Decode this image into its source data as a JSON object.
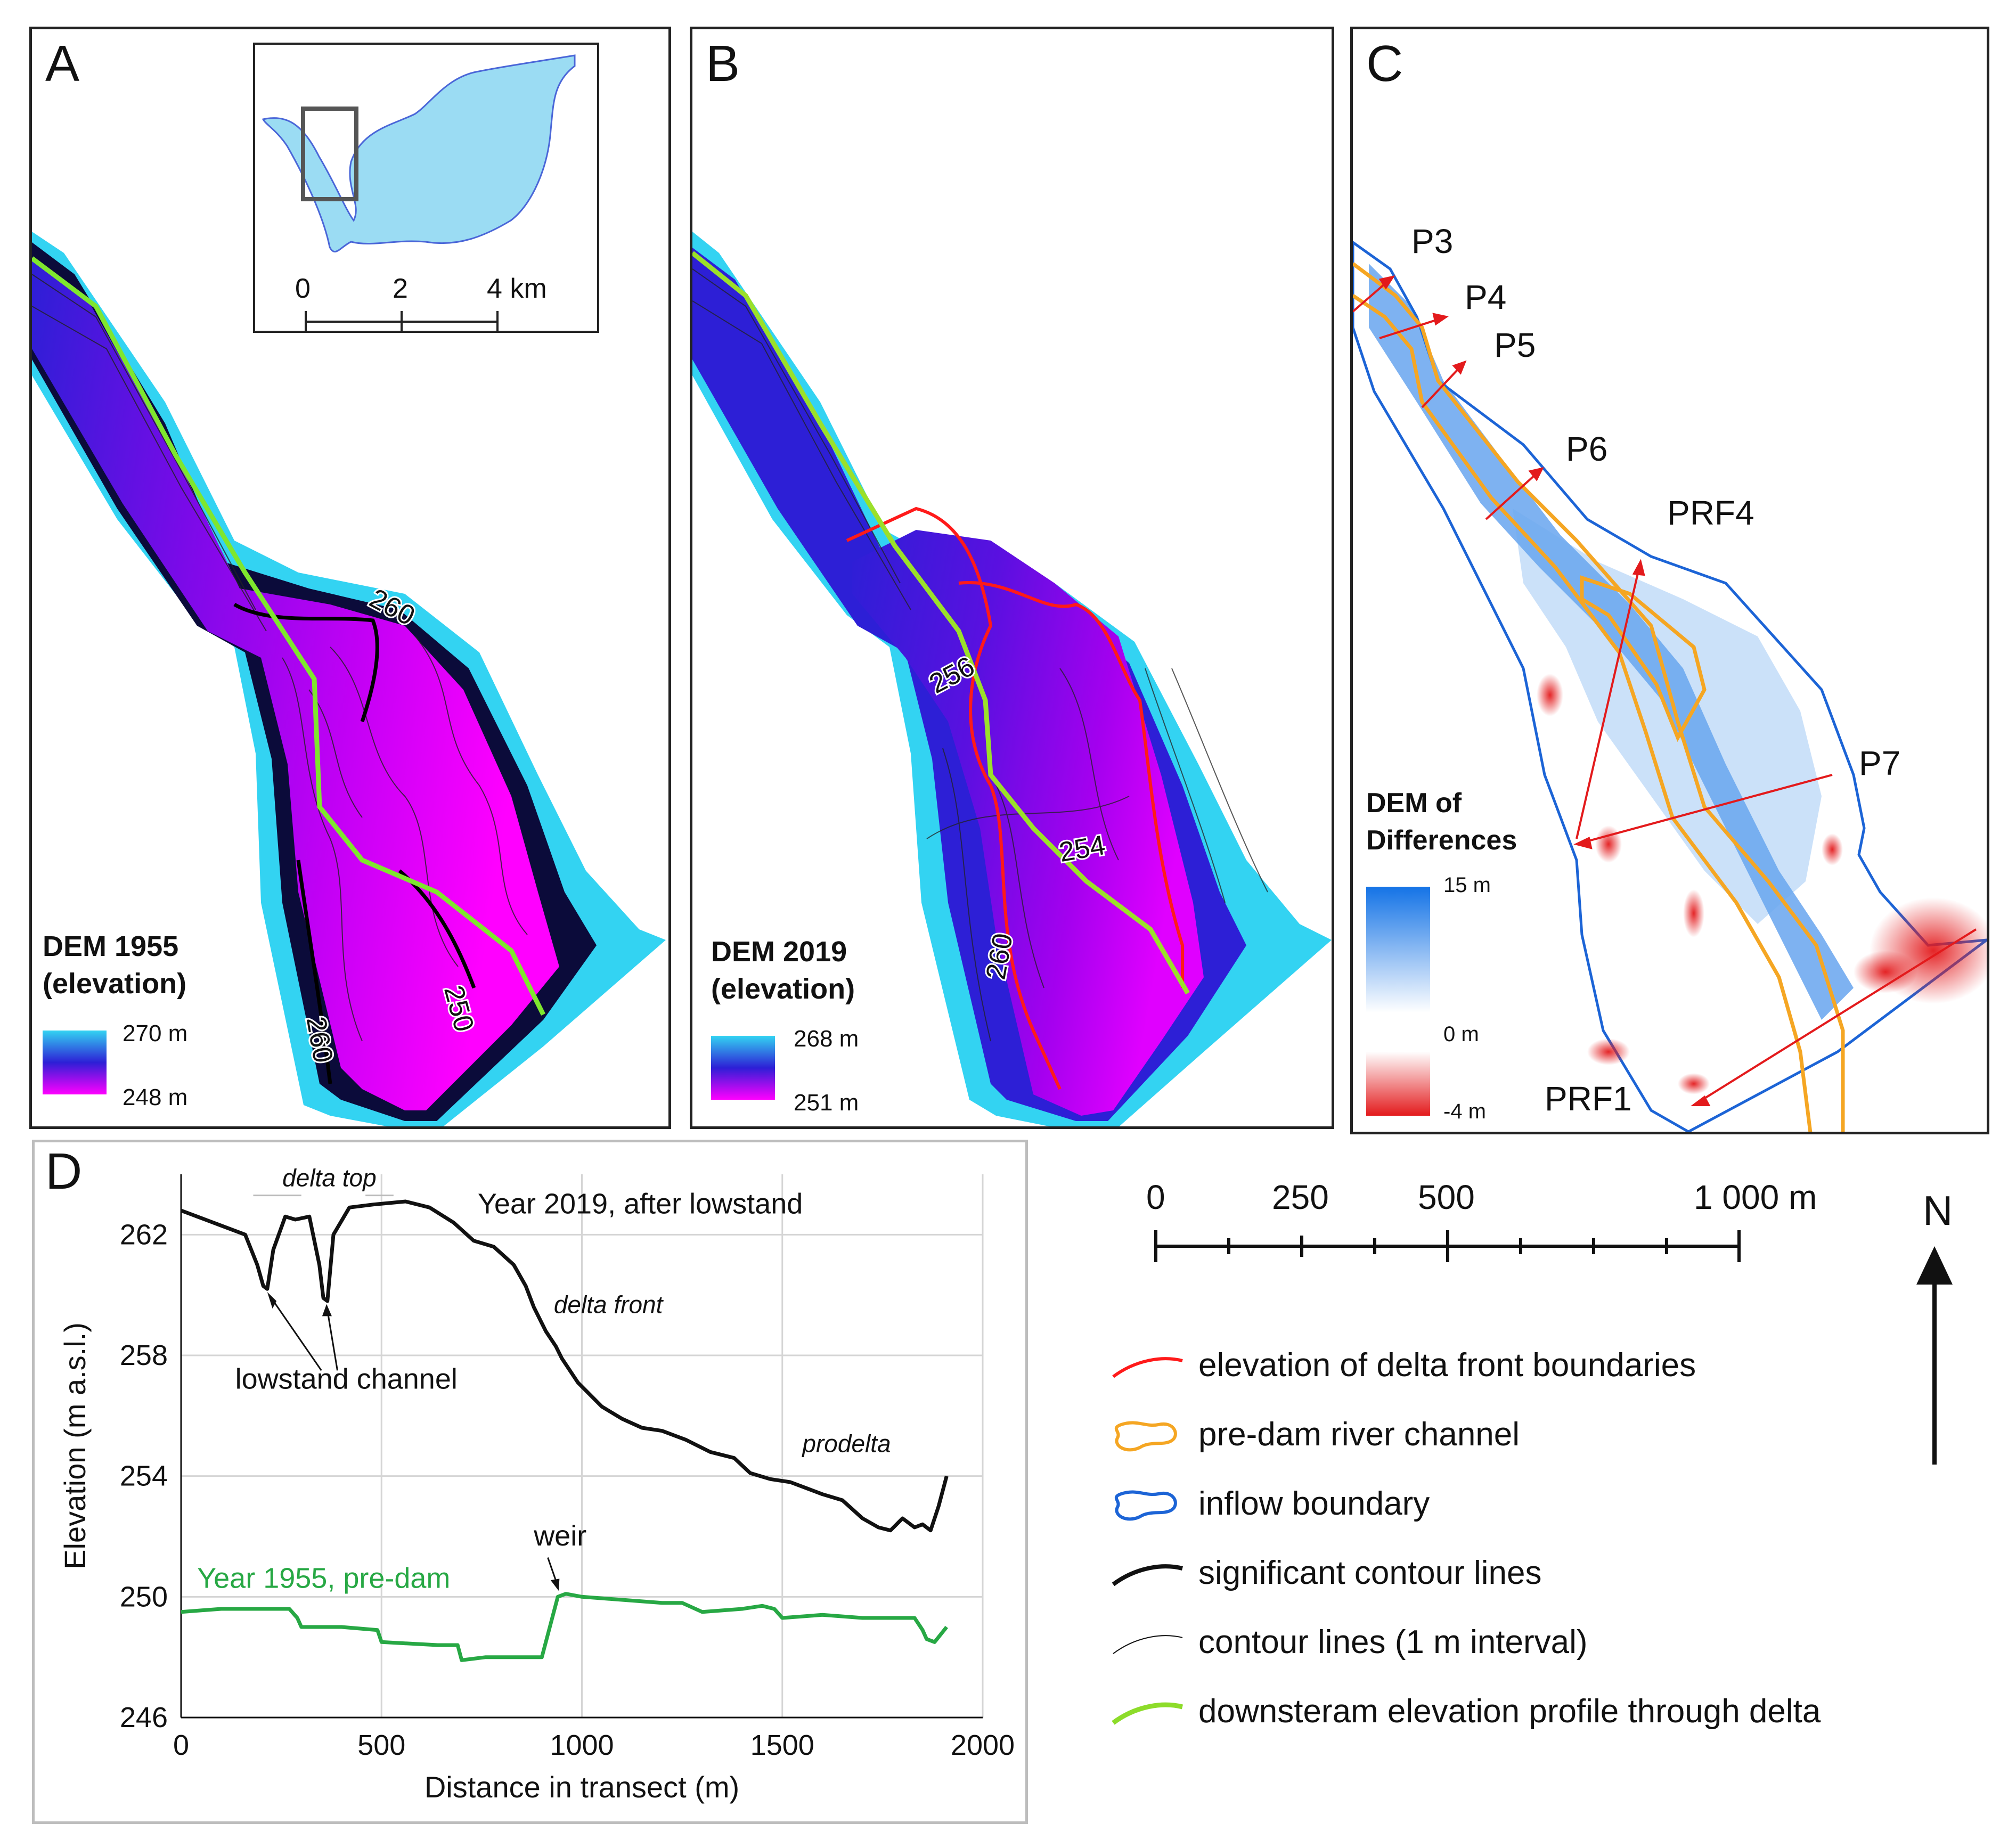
{
  "panels": {
    "a": {
      "letter": "A",
      "legend_title_1": "DEM 1955",
      "legend_title_2": "(elevation)",
      "legend_max": "270 m",
      "legend_min": "248 m",
      "contour_labels": [
        "260",
        "260",
        "250"
      ],
      "inset": {
        "scale_ticks": [
          "0",
          "2",
          "4 km"
        ]
      },
      "colors": {
        "high": "#33d3f2",
        "mid": "#2d1fd6",
        "low": "#ff00ff",
        "profile": "#7fe62e"
      }
    },
    "b": {
      "letter": "B",
      "legend_title_1": "DEM 2019",
      "legend_title_2": "(elevation)",
      "legend_max": "268 m",
      "legend_min": "251 m",
      "contour_labels": [
        "256",
        "254",
        "260"
      ],
      "colors": {
        "high": "#33d3f2",
        "mid": "#2d1fd6",
        "low": "#ff00ff",
        "front": "#ff1a1a",
        "profile": "#9be02a"
      }
    },
    "c": {
      "letter": "C",
      "legend_title_1": "DEM of",
      "legend_title_2": "Differences",
      "legend_max": "15 m",
      "legend_mid": "0 m",
      "legend_min": "-4 m",
      "profile_labels": [
        "P3",
        "P4",
        "P5",
        "P6",
        "PRF4",
        "P7",
        "PRF1"
      ],
      "colors": {
        "gain": "#1473e6",
        "loss": "#e31a1c",
        "channel": "#f5a623",
        "boundary": "#1c64d6",
        "arrow": "#e31a1c"
      }
    }
  },
  "scale_bar": {
    "ticks": [
      "0",
      "250",
      "500",
      "1 000 m"
    ]
  },
  "north_label": "N",
  "legend": {
    "items": [
      {
        "label": "elevation of delta front boundaries",
        "color": "#ff1a1a",
        "width": 6
      },
      {
        "label": "pre-dam river channel",
        "color": "#f5a623",
        "width": 6,
        "shape": "blob"
      },
      {
        "label": "inflow boundary",
        "color": "#1c64d6",
        "width": 6,
        "shape": "blob"
      },
      {
        "label": "significant contour lines",
        "color": "#111111",
        "width": 8
      },
      {
        "label": "contour lines (1 m interval)",
        "color": "#111111",
        "width": 2
      },
      {
        "label": "downsteram elevation profile through delta",
        "color": "#8ddc2a",
        "width": 9
      }
    ]
  },
  "chart_data": {
    "type": "line",
    "letter": "D",
    "xlabel": "Distance in transect (m)",
    "ylabel": "Elevation (m a.s.l.)",
    "xlim": [
      0,
      2000
    ],
    "ylim": [
      246,
      264
    ],
    "xticks": [
      0,
      500,
      1000,
      1500,
      2000
    ],
    "yticks": [
      246,
      250,
      254,
      258,
      262
    ],
    "grid": true,
    "series": [
      {
        "name": "Year 2019, after lowstand",
        "color": "#111111",
        "x": [
          0,
          40,
          100,
          160,
          190,
          205,
          215,
          230,
          260,
          285,
          320,
          345,
          355,
          365,
          380,
          420,
          480,
          560,
          620,
          680,
          730,
          780,
          830,
          860,
          880,
          910,
          935,
          950,
          990,
          1050,
          1100,
          1150,
          1200,
          1260,
          1320,
          1380,
          1420,
          1470,
          1520,
          1560,
          1600,
          1650,
          1700,
          1740,
          1770,
          1800,
          1830,
          1850,
          1870,
          1890,
          1910
        ],
        "y": [
          262.8,
          262.6,
          262.3,
          262.0,
          261.0,
          260.3,
          260.2,
          261.5,
          262.6,
          262.5,
          262.6,
          261.0,
          259.9,
          259.8,
          262.0,
          262.9,
          263.0,
          263.1,
          262.9,
          262.4,
          261.8,
          261.6,
          261.0,
          260.3,
          259.6,
          258.8,
          258.3,
          257.9,
          257.1,
          256.3,
          255.9,
          255.6,
          255.5,
          255.2,
          254.8,
          254.6,
          254.1,
          253.9,
          253.8,
          253.6,
          253.4,
          253.2,
          252.6,
          252.3,
          252.2,
          252.6,
          252.3,
          252.4,
          252.2,
          253.0,
          254.0
        ]
      },
      {
        "name": "Year 1955, pre-dam",
        "color": "#27a844",
        "x": [
          0,
          100,
          200,
          270,
          290,
          300,
          400,
          490,
          500,
          640,
          690,
          700,
          760,
          800,
          900,
          920,
          940,
          960,
          1000,
          1100,
          1200,
          1250,
          1300,
          1400,
          1450,
          1480,
          1500,
          1600,
          1700,
          1800,
          1830,
          1850,
          1860,
          1880,
          1910
        ],
        "y": [
          249.5,
          249.6,
          249.6,
          249.6,
          249.3,
          249.0,
          249.0,
          248.9,
          248.5,
          248.4,
          248.4,
          247.9,
          248.0,
          248.0,
          248.0,
          249.0,
          250.0,
          250.1,
          250.0,
          249.9,
          249.8,
          249.8,
          249.5,
          249.6,
          249.7,
          249.6,
          249.3,
          249.4,
          249.3,
          249.3,
          249.3,
          248.9,
          248.6,
          248.5,
          249.0
        ]
      }
    ],
    "annotations": [
      "delta top",
      "delta front",
      "prodelta",
      "lowstand channel",
      "weir"
    ]
  }
}
